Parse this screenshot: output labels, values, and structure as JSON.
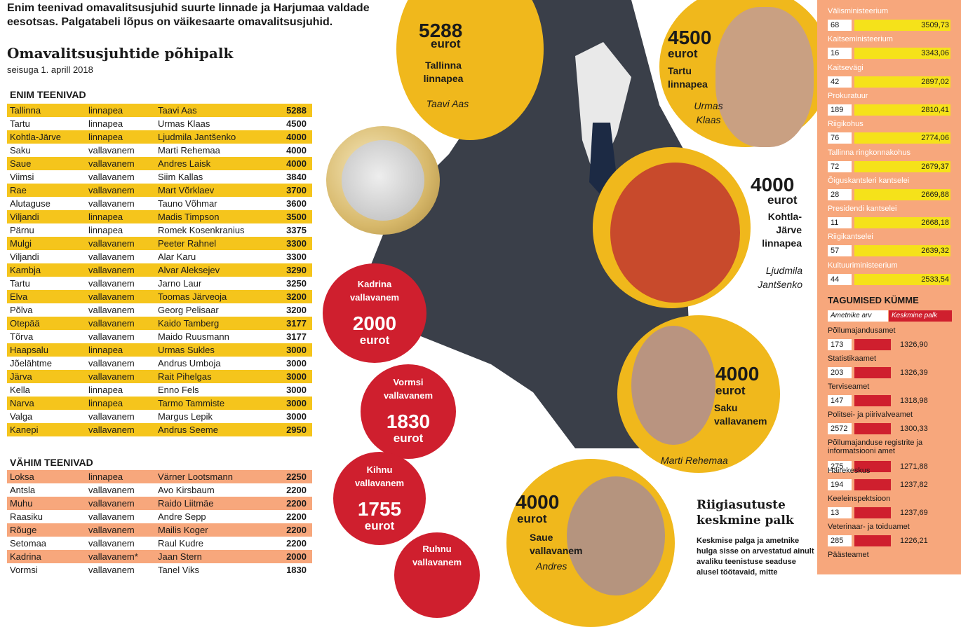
{
  "intro": "Enim teenivad omavalitsusjuhid suurte linnade ja Harjumaa valdade eesotsas. Palgatabeli lõpus on väikesaarte omavalitsusjuhid.",
  "title": "Omavalitsusjuhtide põhipalk",
  "subtitle": "seisuga 1. aprill 2018",
  "top_section": "ENIM TEENIVAD",
  "top_rows": [
    [
      "Tallinna",
      "linnapea",
      "Taavi Aas",
      "5288"
    ],
    [
      "Tartu",
      "linnapea",
      "Urmas Klaas",
      "4500"
    ],
    [
      "Kohtla-Järve",
      "linnapea",
      "Ljudmila Jantšenko",
      "4000"
    ],
    [
      "Saku",
      "vallavanem",
      "Marti Rehemaa",
      "4000"
    ],
    [
      "Saue",
      "vallavanem",
      "Andres Laisk",
      "4000"
    ],
    [
      "Viimsi",
      "vallavanem",
      "Siim Kallas",
      "3840"
    ],
    [
      "Rae",
      "vallavanem",
      "Mart Võrklaev",
      "3700"
    ],
    [
      "Alutaguse",
      "vallavanem",
      "Tauno Võhmar",
      "3600"
    ],
    [
      "Viljandi",
      "linnapea",
      "Madis Timpson",
      "3500"
    ],
    [
      "Pärnu",
      "linnapea",
      "Romek Kosenkranius",
      "3375"
    ],
    [
      "Mulgi",
      "vallavanem",
      "Peeter Rahnel",
      "3300"
    ],
    [
      "Viljandi",
      "vallavanem",
      "Alar Karu",
      "3300"
    ],
    [
      "Kambja",
      "vallavanem",
      "Alvar Aleksejev",
      "3290"
    ],
    [
      "Tartu",
      "vallavanem",
      "Jarno  Laur",
      "3250"
    ],
    [
      "Elva",
      "vallavanem",
      "Toomas Järveoja",
      "3200"
    ],
    [
      "Põlva",
      "vallavanem",
      "Georg Pelisaar",
      "3200"
    ],
    [
      "Otepää",
      "vallavanem",
      "Kaido Tamberg",
      "3177"
    ],
    [
      "Tõrva",
      "vallavanem",
      "Maido Ruusmann",
      "3177"
    ],
    [
      "Haapsalu",
      "linnapea",
      "Urmas Sukles",
      "3000"
    ],
    [
      "Jõelähtme",
      "vallavanem",
      "Andrus Umboja",
      "3000"
    ],
    [
      "Järva",
      "vallavanem",
      "Rait Pihelgas",
      "3000"
    ],
    [
      "Kella",
      "linnapea",
      "Enno Fels",
      "3000"
    ],
    [
      "Narva",
      "linnapea",
      "Tarmo  Tammiste",
      "3000"
    ],
    [
      "Valga",
      "vallavanem",
      "Margus Lepik",
      "3000"
    ],
    [
      "Kanepi",
      "vallavanem",
      "Andrus Seeme",
      "2950"
    ]
  ],
  "bottom_section": "VÄHIM TEENIVAD",
  "bottom_rows": [
    [
      "Loksa",
      "linnapea",
      "Värner  Lootsmann",
      "2250"
    ],
    [
      "Antsla",
      "vallavanem",
      "Avo Kirsbaum",
      "2200"
    ],
    [
      "Muhu",
      "vallavanem",
      "Raido Liitmäe",
      "2200"
    ],
    [
      "Raasiku",
      "vallavanem",
      "Andre Sepp",
      "2200"
    ],
    [
      "Rõuge",
      "vallavanem",
      "Mailis Koger",
      "2200"
    ],
    [
      "Setomaa",
      "vallavanem",
      "Raul Kudre",
      "2200"
    ],
    [
      "Kadrina",
      "vallavanem*",
      "Jaan Stern",
      "2000"
    ],
    [
      "Vormsi",
      "vallavanem",
      "Tanel Viks",
      "1830"
    ]
  ],
  "circles": {
    "tallinn": {
      "amount": "5288",
      "unit": "eurot",
      "role": "Tallinna linnapea",
      "name": "Taavi Aas"
    },
    "tartu": {
      "amount": "4500",
      "unit": "eurot",
      "role": "Tartu linnapea",
      "name": "Urmas Klaas"
    },
    "kohtla": {
      "amount": "4000",
      "unit": "eurot",
      "role": "Kohtla-Järve linnapea",
      "name": "Ljudmila Jantšenko"
    },
    "saku": {
      "amount": "4000",
      "unit": "eurot",
      "role": "Saku vallavanem",
      "name": "Marti Rehemaa"
    },
    "saue": {
      "amount": "4000",
      "unit": "eurot",
      "role": "Saue vallavanem",
      "name": "Andres"
    },
    "kadrina": {
      "role": "Kadrina vallavanem",
      "amount": "2000",
      "unit": "eurot"
    },
    "vormsi": {
      "role": "Vormsi vallavanem",
      "amount": "1830",
      "unit": "eurot"
    },
    "kihnu": {
      "role": "Kihnu vallavanem",
      "amount": "1755",
      "unit": "eurot"
    },
    "ruhnu": {
      "role": "Ruhnu vallavanem"
    }
  },
  "agency_top": [
    {
      "name": "Välisministeerium",
      "count": "68",
      "salary": "3509,73"
    },
    {
      "name": "Kaitseministeerium",
      "count": "16",
      "salary": "3343,06"
    },
    {
      "name": "Kaitsevägi",
      "count": "42",
      "salary": "2897,02"
    },
    {
      "name": "Prokuratuur",
      "count": "189",
      "salary": "2810,41"
    },
    {
      "name": "Riigikohus",
      "count": "76",
      "salary": "2774,06"
    },
    {
      "name": "Tallinna ringkonnakohus",
      "count": "72",
      "salary": "2679,37"
    },
    {
      "name": "Õiguskantsleri kantselei",
      "count": "28",
      "salary": "2669,88"
    },
    {
      "name": "Presidendi kantselei",
      "count": "11",
      "salary": "2668,18"
    },
    {
      "name": "Riigikantselei",
      "count": "57",
      "salary": "2639,32"
    },
    {
      "name": "Kultuuriministeerium",
      "count": "44",
      "salary": "2533,54"
    }
  ],
  "bottom_ten_title": "TAGUMISED KÜMME",
  "legend": {
    "count": "Ametnike arv",
    "salary": "Keskmine palk"
  },
  "agency_bottom": [
    {
      "name": "Põllumajandusamet",
      "count": "173",
      "salary": "1326,90"
    },
    {
      "name": "Statistikaamet",
      "count": "203",
      "salary": "1326,39"
    },
    {
      "name": "Terviseamet",
      "count": "147",
      "salary": "1318,98"
    },
    {
      "name": "Politsei- ja piirivalveamet",
      "count": "2572",
      "salary": "1300,33"
    },
    {
      "name": "Põllumajanduse registrite ja informatsiooni amet",
      "count": "275",
      "salary": "1271,88"
    },
    {
      "name": "Häirekeskus",
      "count": "194",
      "salary": "1237,82"
    },
    {
      "name": "Keeleinspektsioon",
      "count": "13",
      "salary": "1237,69"
    },
    {
      "name": "Veterinaar- ja toiduamet",
      "count": "285",
      "salary": "1226,21"
    },
    {
      "name": "Päästeamet",
      "count": "",
      "salary": ""
    }
  ],
  "note_title": "Riigiasutuste keskmine palk",
  "note_text": "Keskmise palga ja ametnike hulga sisse on arvestatud ainult avaliku teenistuse seaduse alusel töötavaid, mitte"
}
